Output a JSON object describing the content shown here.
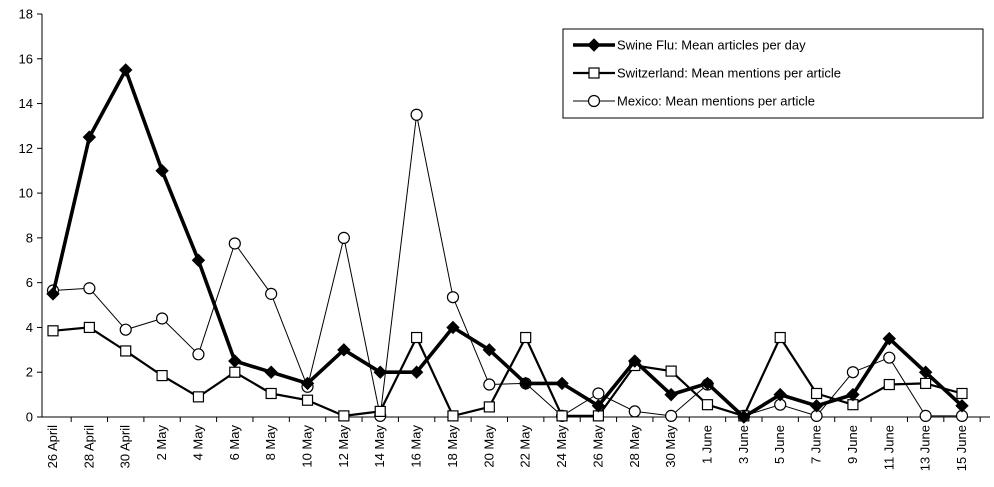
{
  "chart_data": {
    "type": "line",
    "title": "",
    "xlabel": "",
    "ylabel": "",
    "ylim": [
      0,
      18
    ],
    "yticks": [
      0,
      2,
      4,
      6,
      8,
      10,
      12,
      14,
      16,
      18
    ],
    "grid": false,
    "legend_placement": "top-right",
    "categories": [
      "26 April",
      "28 April",
      "30 April",
      "2 May",
      "4 May",
      "6 May",
      "8 May",
      "10 May",
      "12 May",
      "14 May",
      "16 May",
      "18 May",
      "20 May",
      "22 May",
      "24 May",
      "26 May",
      "28 May",
      "30 May",
      "1 June",
      "3 June",
      "5 June",
      "7 June",
      "9 June",
      "11 June",
      "13 June",
      "15 June"
    ],
    "series": [
      {
        "name": "Swine Flu: Mean articles per day",
        "marker": "filled-diamond",
        "color": "#000000",
        "values": [
          5.5,
          12.5,
          15.5,
          11,
          7,
          2.5,
          2,
          1.5,
          3,
          2,
          2,
          4,
          3,
          1.5,
          1.5,
          0.5,
          2.5,
          1,
          1.5,
          0,
          1,
          0.5,
          1,
          3.5,
          2,
          0.5
        ]
      },
      {
        "name": "Switzerland: Mean mentions per article",
        "marker": "open-square",
        "color": "#000000",
        "values": [
          3.85,
          4.0,
          2.95,
          1.85,
          0.9,
          2.0,
          1.05,
          0.75,
          0.05,
          0.25,
          3.55,
          0.05,
          0.45,
          3.55,
          0.05,
          0.05,
          2.3,
          2.05,
          0.55,
          0.05,
          3.55,
          1.05,
          0.55,
          1.45,
          1.5,
          1.05
        ]
      },
      {
        "name": "Mexico: Mean mentions per article",
        "marker": "open-circle",
        "color": "#000000",
        "values": [
          5.65,
          5.75,
          3.9,
          4.4,
          2.8,
          7.75,
          5.5,
          1.35,
          8.0,
          0.05,
          13.5,
          5.35,
          1.45,
          1.5,
          0.05,
          1.05,
          0.25,
          0.05,
          1.45,
          0.05,
          0.55,
          0.05,
          2.0,
          2.65,
          0.05,
          0.05
        ]
      }
    ]
  }
}
